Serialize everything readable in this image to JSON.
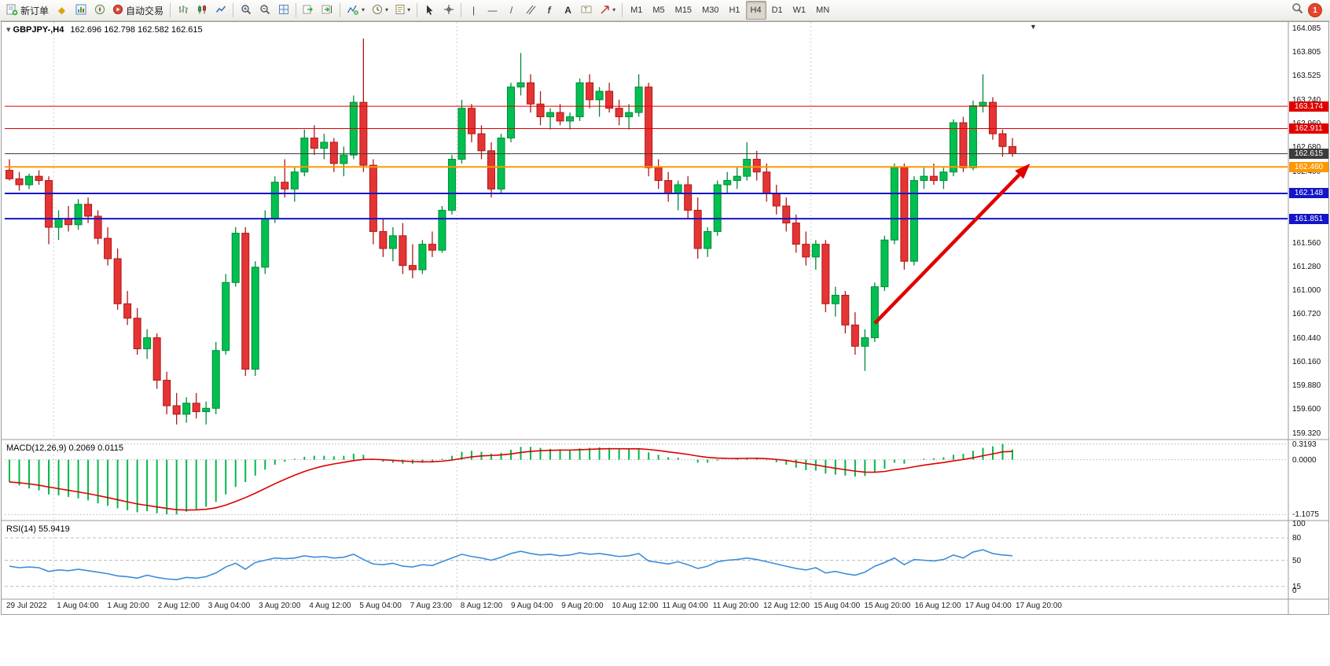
{
  "toolbar": {
    "new_order_label": "新订单",
    "autotrading_label": "自动交易",
    "text_tool_label": "A",
    "fibo_tool_label": "f",
    "timeframes": [
      "M1",
      "M5",
      "M15",
      "M30",
      "H1",
      "H4",
      "D1",
      "W1",
      "MN"
    ],
    "active_timeframe": "H4",
    "notification_count": "1"
  },
  "chart": {
    "title": "GBPJPY-,H4",
    "ohlc": "162.696 162.798 162.582 162.615",
    "one_click_arrow": "▾",
    "shift_marker": "▼"
  },
  "chart_data": {
    "type": "candlestick",
    "symbol": "GBPJPY-",
    "period": "H4",
    "price_range": {
      "min": 159.28,
      "max": 164.1
    },
    "price_axis_labels": [
      "164.085",
      "163.805",
      "163.525",
      "163.240",
      "162.960",
      "162.680",
      "162.400",
      "161.560",
      "161.280",
      "161.000",
      "160.720",
      "160.440",
      "160.160",
      "159.880",
      "159.600",
      "159.320"
    ],
    "time_labels": [
      "29 Jul 2022",
      "1 Aug 04:00",
      "1 Aug 20:00",
      "2 Aug 12:00",
      "3 Aug 04:00",
      "3 Aug 20:00",
      "4 Aug 12:00",
      "5 Aug 04:00",
      "7 Aug 23:00",
      "8 Aug 12:00",
      "9 Aug 04:00",
      "9 Aug 20:00",
      "10 Aug 12:00",
      "11 Aug 04:00",
      "11 Aug 20:00",
      "12 Aug 12:00",
      "15 Aug 04:00",
      "15 Aug 20:00",
      "16 Aug 12:00",
      "17 Aug 04:00",
      "17 Aug 20:00"
    ],
    "period_separator_candles": [
      5,
      46,
      82
    ],
    "levels": [
      {
        "price": 163.174,
        "label": "163.174",
        "color": "#e00000",
        "width": 1
      },
      {
        "price": 162.911,
        "label": "162.911",
        "color": "#e00000",
        "width": 1
      },
      {
        "price": 162.615,
        "label": "162.615",
        "color": "#3c3c3c",
        "width": 1,
        "current": true
      },
      {
        "price": 162.46,
        "label": "162.460",
        "color": "#ff9800",
        "width": 2
      },
      {
        "price": 162.148,
        "label": "162.148",
        "color": "#1414c8",
        "width": 2
      },
      {
        "price": 161.851,
        "label": "161.851",
        "color": "#1414c8",
        "width": 2
      }
    ],
    "arrow": {
      "from_candle": 88,
      "from_price": 160.62,
      "to_candle": 103.8,
      "to_price": 162.5,
      "color": "#e00000"
    },
    "candles": [
      [
        162.42,
        162.55,
        162.3,
        162.32
      ],
      [
        162.32,
        162.4,
        162.18,
        162.25
      ],
      [
        162.25,
        162.38,
        162.2,
        162.35
      ],
      [
        162.35,
        162.42,
        162.25,
        162.3
      ],
      [
        162.3,
        162.35,
        161.55,
        161.75
      ],
      [
        161.75,
        161.95,
        161.6,
        161.85
      ],
      [
        161.85,
        162.0,
        161.7,
        161.78
      ],
      [
        161.78,
        162.08,
        161.72,
        162.02
      ],
      [
        162.02,
        162.1,
        161.8,
        161.88
      ],
      [
        161.88,
        161.95,
        161.55,
        161.62
      ],
      [
        161.62,
        161.75,
        161.3,
        161.38
      ],
      [
        161.38,
        161.5,
        160.78,
        160.85
      ],
      [
        160.85,
        161.0,
        160.6,
        160.68
      ],
      [
        160.68,
        160.8,
        160.25,
        160.32
      ],
      [
        160.32,
        160.55,
        160.2,
        160.45
      ],
      [
        160.45,
        160.5,
        159.85,
        159.95
      ],
      [
        159.95,
        160.05,
        159.55,
        159.65
      ],
      [
        159.65,
        159.8,
        159.43,
        159.55
      ],
      [
        159.55,
        159.75,
        159.45,
        159.68
      ],
      [
        159.68,
        159.8,
        159.5,
        159.58
      ],
      [
        159.58,
        159.7,
        159.43,
        159.62
      ],
      [
        159.62,
        160.4,
        159.55,
        160.3
      ],
      [
        160.3,
        161.2,
        160.25,
        161.1
      ],
      [
        161.1,
        161.75,
        161.05,
        161.68
      ],
      [
        161.68,
        161.75,
        160.0,
        160.08
      ],
      [
        160.08,
        161.35,
        160.0,
        161.28
      ],
      [
        161.28,
        161.95,
        161.2,
        161.85
      ],
      [
        161.85,
        162.35,
        161.8,
        162.28
      ],
      [
        162.28,
        162.55,
        162.1,
        162.2
      ],
      [
        162.2,
        162.45,
        162.05,
        162.4
      ],
      [
        162.4,
        162.9,
        162.35,
        162.8
      ],
      [
        162.8,
        162.95,
        162.6,
        162.68
      ],
      [
        162.68,
        162.85,
        162.55,
        162.75
      ],
      [
        162.75,
        162.8,
        162.4,
        162.5
      ],
      [
        162.5,
        162.7,
        162.35,
        162.6
      ],
      [
        162.6,
        163.3,
        162.55,
        163.22
      ],
      [
        163.22,
        163.97,
        162.4,
        162.48
      ],
      [
        162.48,
        162.55,
        161.55,
        161.7
      ],
      [
        161.7,
        161.85,
        161.4,
        161.5
      ],
      [
        161.5,
        161.75,
        161.35,
        161.65
      ],
      [
        161.65,
        161.8,
        161.2,
        161.3
      ],
      [
        161.3,
        161.55,
        161.15,
        161.25
      ],
      [
        161.25,
        161.6,
        161.2,
        161.55
      ],
      [
        161.55,
        161.7,
        161.4,
        161.48
      ],
      [
        161.48,
        162.0,
        161.45,
        161.95
      ],
      [
        161.95,
        162.6,
        161.9,
        162.55
      ],
      [
        162.55,
        163.25,
        162.5,
        163.15
      ],
      [
        163.15,
        163.2,
        162.75,
        162.85
      ],
      [
        162.85,
        162.95,
        162.55,
        162.65
      ],
      [
        162.65,
        162.75,
        162.1,
        162.2
      ],
      [
        162.2,
        162.85,
        162.15,
        162.8
      ],
      [
        162.8,
        163.45,
        162.75,
        163.4
      ],
      [
        163.4,
        163.8,
        163.3,
        163.45
      ],
      [
        163.45,
        163.55,
        163.1,
        163.2
      ],
      [
        163.2,
        163.35,
        162.95,
        163.05
      ],
      [
        163.05,
        163.15,
        162.9,
        163.1
      ],
      [
        163.1,
        163.2,
        162.95,
        163.0
      ],
      [
        163.0,
        163.1,
        162.9,
        163.05
      ],
      [
        163.05,
        163.5,
        163.0,
        163.45
      ],
      [
        163.45,
        163.55,
        163.15,
        163.25
      ],
      [
        163.25,
        163.4,
        163.05,
        163.35
      ],
      [
        163.35,
        163.45,
        163.1,
        163.15
      ],
      [
        163.15,
        163.25,
        162.95,
        163.05
      ],
      [
        163.05,
        163.2,
        162.9,
        163.1
      ],
      [
        163.1,
        163.55,
        163.05,
        163.4
      ],
      [
        163.4,
        163.45,
        162.35,
        162.45
      ],
      [
        162.45,
        162.55,
        162.2,
        162.3
      ],
      [
        162.3,
        162.4,
        162.05,
        162.15
      ],
      [
        162.15,
        162.3,
        161.95,
        162.25
      ],
      [
        162.25,
        162.35,
        161.85,
        161.95
      ],
      [
        161.95,
        162.1,
        161.38,
        161.5
      ],
      [
        161.5,
        161.75,
        161.4,
        161.7
      ],
      [
        161.7,
        162.3,
        161.65,
        162.25
      ],
      [
        162.25,
        162.4,
        162.15,
        162.3
      ],
      [
        162.3,
        162.45,
        162.2,
        162.35
      ],
      [
        162.35,
        162.75,
        162.3,
        162.55
      ],
      [
        162.55,
        162.65,
        162.3,
        162.4
      ],
      [
        162.4,
        162.5,
        162.05,
        162.15
      ],
      [
        162.15,
        162.25,
        161.9,
        162.0
      ],
      [
        162.0,
        162.1,
        161.7,
        161.8
      ],
      [
        161.8,
        161.9,
        161.45,
        161.55
      ],
      [
        161.55,
        161.7,
        161.3,
        161.4
      ],
      [
        161.4,
        161.6,
        161.25,
        161.55
      ],
      [
        161.55,
        161.6,
        160.75,
        160.85
      ],
      [
        160.85,
        161.05,
        160.7,
        160.95
      ],
      [
        160.95,
        161.0,
        160.5,
        160.6
      ],
      [
        160.6,
        160.75,
        160.25,
        160.35
      ],
      [
        160.35,
        160.55,
        160.06,
        160.45
      ],
      [
        160.45,
        161.1,
        160.4,
        161.05
      ],
      [
        161.05,
        161.65,
        161.0,
        161.6
      ],
      [
        161.6,
        162.5,
        161.55,
        162.45
      ],
      [
        162.45,
        162.5,
        161.25,
        161.35
      ],
      [
        161.35,
        162.35,
        161.3,
        162.3
      ],
      [
        162.3,
        162.45,
        162.2,
        162.35
      ],
      [
        162.35,
        162.5,
        162.25,
        162.3
      ],
      [
        162.3,
        162.45,
        162.2,
        162.4
      ],
      [
        162.4,
        163.02,
        162.35,
        162.98
      ],
      [
        162.98,
        163.05,
        162.4,
        162.45
      ],
      [
        162.45,
        163.24,
        162.42,
        163.18
      ],
      [
        163.18,
        163.55,
        163.1,
        163.22
      ],
      [
        163.22,
        163.28,
        162.78,
        162.85
      ],
      [
        162.85,
        162.9,
        162.58,
        162.7
      ],
      [
        162.7,
        162.8,
        162.58,
        162.615
      ]
    ],
    "macd": {
      "label": "MACD(12,26,9) 0.2069 0.0115",
      "axis_labels": [
        "0.3193",
        "0.0000",
        "-1.1075"
      ],
      "axis_values": [
        0.3193,
        0.0,
        -1.1075
      ],
      "range": {
        "min": -1.18,
        "max": 0.36
      },
      "signal_period": 9,
      "values": [
        -0.45,
        -0.52,
        -0.58,
        -0.62,
        -0.7,
        -0.72,
        -0.75,
        -0.78,
        -0.82,
        -0.88,
        -0.93,
        -0.98,
        -1.02,
        -1.06,
        -1.04,
        -1.08,
        -1.1,
        -1.1075,
        -1.05,
        -1.0,
        -0.95,
        -0.85,
        -0.7,
        -0.55,
        -0.45,
        -0.32,
        -0.2,
        -0.1,
        -0.04,
        0.02,
        0.06,
        0.08,
        0.08,
        0.07,
        0.08,
        0.12,
        0.1,
        0.02,
        -0.04,
        -0.06,
        -0.08,
        -0.08,
        -0.06,
        -0.04,
        0.02,
        0.08,
        0.16,
        0.18,
        0.16,
        0.12,
        0.14,
        0.2,
        0.26,
        0.26,
        0.24,
        0.22,
        0.21,
        0.2,
        0.23,
        0.24,
        0.25,
        0.24,
        0.22,
        0.21,
        0.23,
        0.15,
        0.1,
        0.05,
        0.04,
        0.0,
        -0.06,
        -0.06,
        -0.02,
        0.0,
        0.02,
        0.04,
        0.03,
        -0.01,
        -0.05,
        -0.1,
        -0.16,
        -0.21,
        -0.22,
        -0.28,
        -0.3,
        -0.32,
        -0.34,
        -0.33,
        -0.26,
        -0.18,
        -0.06,
        -0.08,
        0.0,
        0.02,
        0.03,
        0.05,
        0.1,
        0.12,
        0.18,
        0.24,
        0.27,
        0.3193,
        0.2069
      ]
    },
    "rsi": {
      "label": "RSI(14) 55.9419",
      "axis_labels": [
        "100",
        "80",
        "50",
        "15",
        "0"
      ],
      "axis_values": [
        100,
        80,
        50,
        15,
        0
      ],
      "level_lines": [
        80,
        50,
        15
      ],
      "range": {
        "min": 0,
        "max": 100
      },
      "values": [
        42,
        40,
        41,
        40,
        35,
        37,
        36,
        38,
        36,
        34,
        32,
        29,
        28,
        26,
        30,
        27,
        25,
        24,
        27,
        26,
        28,
        33,
        41,
        46,
        38,
        47,
        50,
        53,
        52,
        53,
        56,
        54,
        55,
        53,
        54,
        58,
        51,
        45,
        44,
        46,
        42,
        41,
        44,
        43,
        48,
        53,
        58,
        55,
        53,
        50,
        54,
        59,
        62,
        59,
        57,
        58,
        56,
        57,
        60,
        58,
        59,
        57,
        55,
        56,
        59,
        49,
        47,
        45,
        48,
        44,
        39,
        42,
        48,
        50,
        51,
        53,
        51,
        48,
        45,
        42,
        39,
        37,
        40,
        33,
        35,
        32,
        30,
        34,
        42,
        47,
        53,
        44,
        51,
        50,
        49,
        51,
        57,
        53,
        61,
        64,
        59,
        57,
        55.94
      ]
    },
    "colors": {
      "bull": "#00c050",
      "bull_border": "#008a38",
      "bear": "#e53434",
      "bear_border": "#b01818",
      "macd_hist": "#00b84a",
      "macd_signal": "#dd0000",
      "rsi_line": "#3c8ddc",
      "grid": "#c8c8c8",
      "frame": "#9a9a9a"
    }
  }
}
